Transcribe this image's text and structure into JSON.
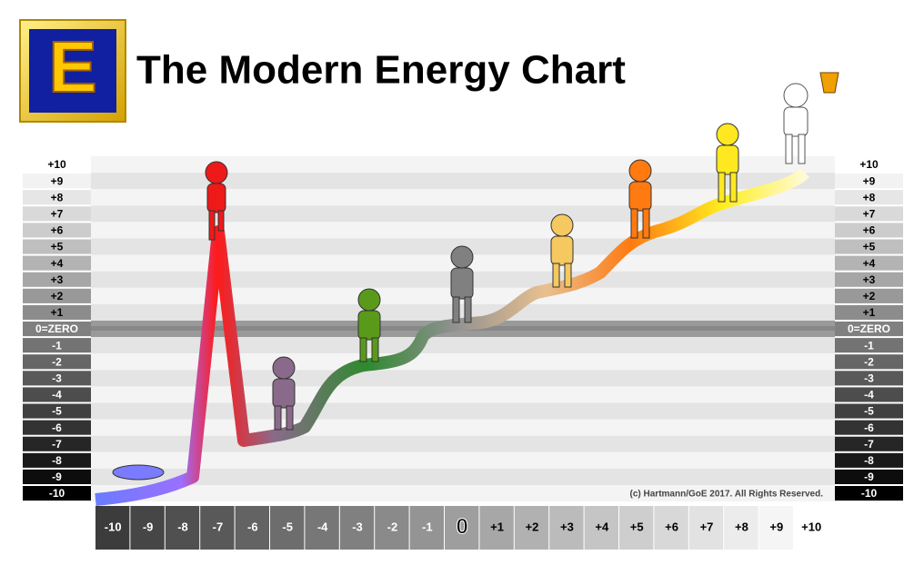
{
  "logo": "E",
  "title": "The Modern Energy Chart",
  "left_scale": [
    "+10",
    "+9",
    "+8",
    "+7",
    "+6",
    "+5",
    "+4",
    "+3",
    "+2",
    "+1",
    "0=ZERO",
    "-1",
    "-2",
    "-3",
    "-4",
    "-5",
    "-6",
    "-7",
    "-8",
    "-9",
    "-10"
  ],
  "right_scale": [
    "+10",
    "+9",
    "+8",
    "+7",
    "+6",
    "+5",
    "+4",
    "+3",
    "+2",
    "+1",
    "0=ZERO",
    "-1",
    "-2",
    "-3",
    "-4",
    "-5",
    "-6",
    "-7",
    "-8",
    "-9",
    "-10"
  ],
  "bottom_scale": [
    "-10",
    "-9",
    "-8",
    "-7",
    "-6",
    "-5",
    "-4",
    "-3",
    "-2",
    "-1",
    "0",
    "+1",
    "+2",
    "+3",
    "+4",
    "+5",
    "+6",
    "+7",
    "+8",
    "+9",
    "+10"
  ],
  "copyright": "(c) Hartmann/GoE 2017. All Rights Reserved."
}
